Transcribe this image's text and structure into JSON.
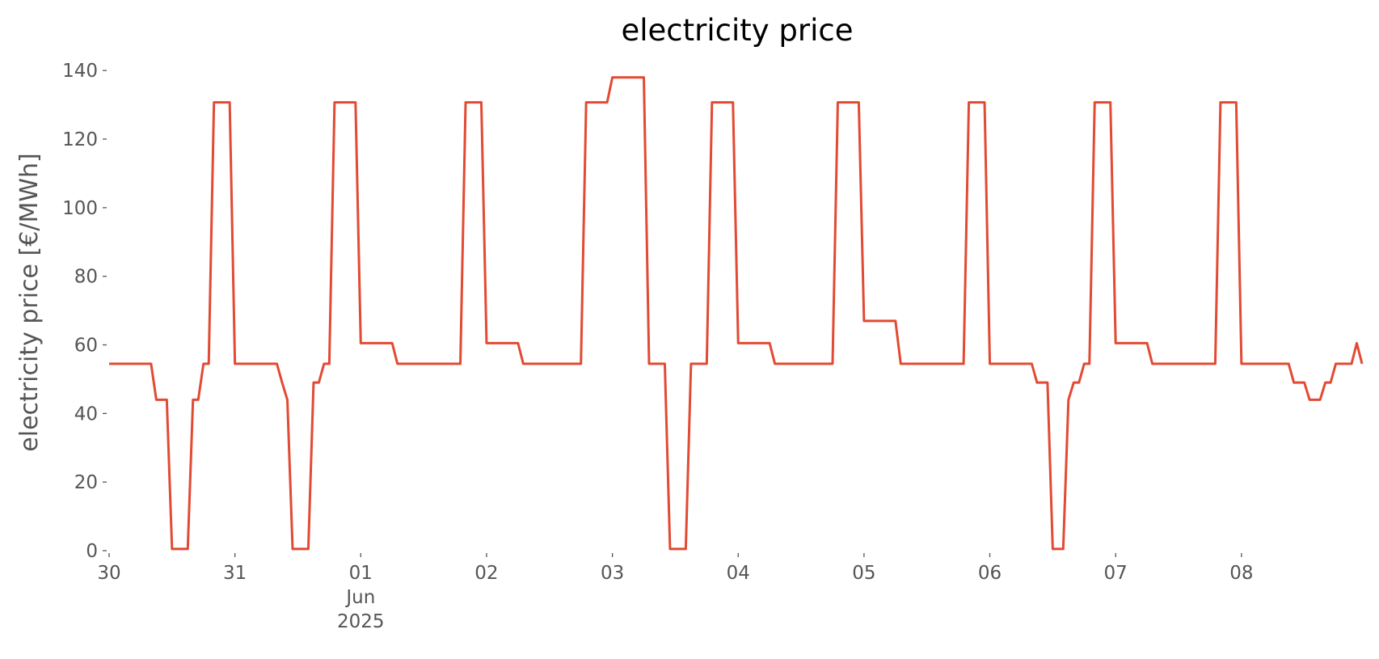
{
  "chart_data": {
    "type": "line",
    "title": "electricity price",
    "y_label": "electricity price [€/MWh]",
    "color": "#E24A33",
    "x": [
      0,
      1,
      2,
      3,
      4,
      5,
      6,
      7,
      8,
      9,
      10,
      11,
      12,
      13,
      14,
      15,
      16,
      17,
      18,
      19,
      20,
      21,
      22,
      23,
      24,
      25,
      26,
      27,
      28,
      29,
      30,
      31,
      32,
      33,
      34,
      35,
      36,
      37,
      38,
      39,
      40,
      41,
      42,
      43,
      44,
      45,
      46,
      47,
      48,
      49,
      50,
      51,
      52,
      53,
      54,
      55,
      56,
      57,
      58,
      59,
      60,
      61,
      62,
      63,
      64,
      65,
      66,
      67,
      68,
      69,
      70,
      71,
      72,
      73,
      74,
      75,
      76,
      77,
      78,
      79,
      80,
      81,
      82,
      83,
      84,
      85,
      86,
      87,
      88,
      89,
      90,
      91,
      92,
      93,
      94,
      95,
      96,
      97,
      98,
      99,
      100,
      101,
      102,
      103,
      104,
      105,
      106,
      107,
      108,
      109,
      110,
      111,
      112,
      113,
      114,
      115,
      116,
      117,
      118,
      119,
      120,
      121,
      122,
      123,
      124,
      125,
      126,
      127,
      128,
      129,
      130,
      131,
      132,
      133,
      134,
      135,
      136,
      137,
      138,
      139,
      140,
      141,
      142,
      143,
      144,
      145,
      146,
      147,
      148,
      149,
      150,
      151,
      152,
      153,
      154,
      155,
      156,
      157,
      158,
      159,
      160,
      161,
      162,
      163,
      164,
      165,
      166,
      167,
      168,
      169,
      170,
      171,
      172,
      173,
      174,
      175,
      176,
      177,
      178,
      179,
      180,
      181,
      182,
      183,
      184,
      185,
      186,
      187,
      188,
      189,
      190,
      191,
      192,
      193,
      194,
      195,
      196,
      197,
      198,
      199,
      200,
      201,
      202,
      203,
      204,
      205,
      206,
      207,
      208,
      209,
      210,
      211,
      212,
      213,
      214,
      215,
      216,
      217,
      218,
      219,
      220,
      221,
      222,
      223,
      224,
      225,
      226,
      227,
      228,
      229,
      230,
      231,
      232,
      233,
      234,
      235,
      236,
      237,
      238,
      239
    ],
    "values": [
      54.5,
      54.5,
      54.5,
      54.5,
      54.5,
      54.5,
      54.5,
      54.5,
      54.5,
      44,
      44,
      44,
      0.5,
      0.5,
      0.5,
      0.5,
      44,
      44,
      54.5,
      54.5,
      130.7,
      130.7,
      130.7,
      130.7,
      54.5,
      54.5,
      54.5,
      54.5,
      54.5,
      54.5,
      54.5,
      54.5,
      54.5,
      49,
      44,
      0.5,
      0.5,
      0.5,
      0.5,
      49,
      49,
      54.5,
      54.5,
      130.7,
      130.7,
      130.7,
      130.7,
      130.7,
      60.5,
      60.5,
      60.5,
      60.5,
      60.5,
      60.5,
      60.5,
      54.5,
      54.5,
      54.5,
      54.5,
      54.5,
      54.5,
      54.5,
      54.5,
      54.5,
      54.5,
      54.5,
      54.5,
      54.5,
      130.7,
      130.7,
      130.7,
      130.7,
      60.5,
      60.5,
      60.5,
      60.5,
      60.5,
      60.5,
      60.5,
      54.5,
      54.5,
      54.5,
      54.5,
      54.5,
      54.5,
      54.5,
      54.5,
      54.5,
      54.5,
      54.5,
      54.5,
      130.7,
      130.7,
      130.7,
      130.7,
      130.7,
      138,
      138,
      138,
      138,
      138,
      138,
      138,
      54.5,
      54.5,
      54.5,
      54.5,
      0.5,
      0.5,
      0.5,
      0.5,
      54.5,
      54.5,
      54.5,
      54.5,
      130.7,
      130.7,
      130.7,
      130.7,
      130.7,
      60.5,
      60.5,
      60.5,
      60.5,
      60.5,
      60.5,
      60.5,
      54.5,
      54.5,
      54.5,
      54.5,
      54.5,
      54.5,
      54.5,
      54.5,
      54.5,
      54.5,
      54.5,
      54.5,
      130.7,
      130.7,
      130.7,
      130.7,
      130.7,
      67,
      67,
      67,
      67,
      67,
      67,
      67,
      54.5,
      54.5,
      54.5,
      54.5,
      54.5,
      54.5,
      54.5,
      54.5,
      54.5,
      54.5,
      54.5,
      54.5,
      54.5,
      130.7,
      130.7,
      130.7,
      130.7,
      54.5,
      54.5,
      54.5,
      54.5,
      54.5,
      54.5,
      54.5,
      54.5,
      54.5,
      49,
      49,
      49,
      0.5,
      0.5,
      0.5,
      44,
      49,
      49,
      54.5,
      54.5,
      130.7,
      130.7,
      130.7,
      130.7,
      60.5,
      60.5,
      60.5,
      60.5,
      60.5,
      60.5,
      60.5,
      54.5,
      54.5,
      54.5,
      54.5,
      54.5,
      54.5,
      54.5,
      54.5,
      54.5,
      54.5,
      54.5,
      54.5,
      54.5,
      130.7,
      130.7,
      130.7,
      130.7,
      54.5,
      54.5,
      54.5,
      54.5,
      54.5,
      54.5,
      54.5,
      54.5,
      54.5,
      54.5,
      49,
      49,
      49,
      44,
      44,
      44,
      49,
      49,
      54.5,
      54.5,
      54.5,
      54.5,
      60.5,
      54.5
    ],
    "xlim": [
      0,
      239
    ],
    "xticks": [
      {
        "value": 0,
        "label": "30"
      },
      {
        "value": 24,
        "label": "31"
      },
      {
        "value": 48,
        "label": "01"
      },
      {
        "value": 72,
        "label": "02"
      },
      {
        "value": 96,
        "label": "03"
      },
      {
        "value": 120,
        "label": "04"
      },
      {
        "value": 144,
        "label": "05"
      },
      {
        "value": 168,
        "label": "06"
      },
      {
        "value": 192,
        "label": "07"
      },
      {
        "value": 216,
        "label": "08"
      }
    ],
    "x_date_label": {
      "value": 48,
      "lines": [
        "Jun",
        "2025"
      ]
    },
    "ylim": [
      0,
      145
    ],
    "yticks": [
      0,
      20,
      40,
      60,
      80,
      100,
      120,
      140
    ],
    "grid": false
  }
}
